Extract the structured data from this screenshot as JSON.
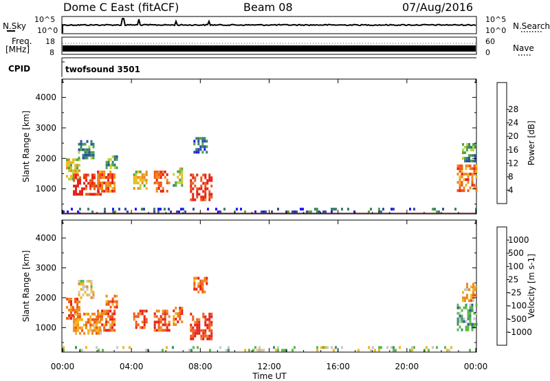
{
  "header": {
    "radar": "Dome C East (fitACF)",
    "beam": "Beam 08",
    "date": "07/Aug/2016"
  },
  "noise_panel": {
    "left_label": "N.Sky",
    "right_label": "N.Search",
    "tick_top": "10^5",
    "tick_bottom": "10^0"
  },
  "freq_panel": {
    "label_line1": "Freq.",
    "label_line2": "[MHz]",
    "tick_top": "18",
    "tick_bottom": "8",
    "right_label": "Nave",
    "right_tick_top": "60",
    "right_tick_bottom": "0"
  },
  "cpid_panel": {
    "label": "CPID",
    "program": "twofsound 3501"
  },
  "colors": {
    "trace": "#000000",
    "frame": "#000000",
    "ground_scatter_line": "#8b2d2d"
  },
  "chart_data": [
    {
      "type": "heatmap",
      "name_field": "power",
      "ylabel": "Slant Range [km]",
      "xlabel": "",
      "x_ticks": [
        "00:00",
        "04:00",
        "08:00",
        "12:00",
        "16:00",
        "20:00",
        "00:00"
      ],
      "x_tick_hours": [
        0,
        4,
        8,
        12,
        16,
        20,
        24
      ],
      "y_ticks": [
        1000,
        2000,
        3000,
        4000
      ],
      "ylim": [
        180,
        4600
      ],
      "xlim_hours": [
        0,
        24
      ],
      "colorbar": {
        "label": "Power [dB]",
        "ticks": [
          "4",
          "8",
          "12",
          "16",
          "20",
          "24",
          "28"
        ],
        "colors": [
          "#1b1bff",
          "#2b4fa8",
          "#3a7f6e",
          "#4fa64a",
          "#b9d23b",
          "#f2b61c",
          "#f08a1e",
          "#ee5a1b",
          "#e8221a"
        ]
      },
      "echo_regions": [
        {
          "t0": 0.2,
          "t1": 1.0,
          "r0": 1300,
          "r1": 2000,
          "level": 0.55
        },
        {
          "t0": 0.6,
          "t1": 2.2,
          "r0": 800,
          "r1": 1500,
          "level": 0.95
        },
        {
          "t0": 0.9,
          "t1": 1.8,
          "r0": 2000,
          "r1": 2600,
          "level": 0.3
        },
        {
          "t0": 2.0,
          "t1": 3.0,
          "r0": 900,
          "r1": 1600,
          "level": 0.8
        },
        {
          "t0": 2.5,
          "t1": 3.2,
          "r0": 1700,
          "r1": 2100,
          "level": 0.35
        },
        {
          "t0": 4.1,
          "t1": 4.9,
          "r0": 1000,
          "r1": 1600,
          "level": 0.6
        },
        {
          "t0": 5.3,
          "t1": 6.2,
          "r0": 900,
          "r1": 1600,
          "level": 0.85
        },
        {
          "t0": 6.4,
          "t1": 6.9,
          "r0": 1100,
          "r1": 1700,
          "level": 0.5
        },
        {
          "t0": 7.4,
          "t1": 8.7,
          "r0": 600,
          "r1": 1500,
          "level": 0.95
        },
        {
          "t0": 7.6,
          "t1": 8.4,
          "r0": 2200,
          "r1": 2700,
          "level": 0.25
        },
        {
          "t0": 22.9,
          "t1": 24.0,
          "r0": 900,
          "r1": 1800,
          "level": 0.8
        },
        {
          "t0": 23.2,
          "t1": 24.0,
          "r0": 1900,
          "r1": 2500,
          "level": 0.35
        },
        {
          "t0": 0.0,
          "t1": 24.0,
          "r0": 200,
          "r1": 380,
          "level": 0.2
        }
      ]
    },
    {
      "type": "heatmap",
      "name_field": "velocity",
      "ylabel": "Slant Range [km]",
      "xlabel": "Time UT",
      "x_ticks": [
        "00:00",
        "04:00",
        "08:00",
        "12:00",
        "16:00",
        "20:00",
        "00:00"
      ],
      "x_tick_hours": [
        0,
        4,
        8,
        12,
        16,
        20,
        24
      ],
      "y_ticks": [
        1000,
        2000,
        3000,
        4000
      ],
      "ylim": [
        180,
        4600
      ],
      "xlim_hours": [
        0,
        24
      ],
      "colorbar": {
        "label": "Velocity [m s-1]",
        "ticks": [
          "-1000",
          "-500",
          "-100",
          "-25",
          "25",
          "100",
          "500",
          "1000"
        ],
        "colors": [
          "#e8221a",
          "#f05a1c",
          "#f08a1e",
          "#f2b61c",
          "#c8c8c8",
          "#5fb84a",
          "#3f8f6a",
          "#2b5fa8",
          "#1b2bff"
        ]
      },
      "echo_regions": [
        {
          "t0": 0.2,
          "t1": 1.0,
          "r0": 1300,
          "r1": 2000,
          "level": 0.2
        },
        {
          "t0": 0.6,
          "t1": 2.2,
          "r0": 800,
          "r1": 1500,
          "level": 0.3
        },
        {
          "t0": 0.9,
          "t1": 1.8,
          "r0": 2000,
          "r1": 2600,
          "level": 0.45
        },
        {
          "t0": 2.0,
          "t1": 3.0,
          "r0": 900,
          "r1": 1600,
          "level": 0.2
        },
        {
          "t0": 2.5,
          "t1": 3.2,
          "r0": 1700,
          "r1": 2100,
          "level": 0.25
        },
        {
          "t0": 4.1,
          "t1": 4.9,
          "r0": 1000,
          "r1": 1600,
          "level": 0.15
        },
        {
          "t0": 5.3,
          "t1": 6.2,
          "r0": 900,
          "r1": 1600,
          "level": 0.15
        },
        {
          "t0": 6.4,
          "t1": 6.9,
          "r0": 1100,
          "r1": 1700,
          "level": 0.2
        },
        {
          "t0": 7.4,
          "t1": 8.7,
          "r0": 600,
          "r1": 1500,
          "level": 0.1
        },
        {
          "t0": 7.6,
          "t1": 8.4,
          "r0": 2200,
          "r1": 2700,
          "level": 0.2
        },
        {
          "t0": 22.9,
          "t1": 24.0,
          "r0": 900,
          "r1": 1800,
          "level": 0.65
        },
        {
          "t0": 23.2,
          "t1": 24.0,
          "r0": 1900,
          "r1": 2500,
          "level": 0.3
        },
        {
          "t0": 0.0,
          "t1": 24.0,
          "r0": 200,
          "r1": 380,
          "level": 0.55
        }
      ]
    }
  ]
}
